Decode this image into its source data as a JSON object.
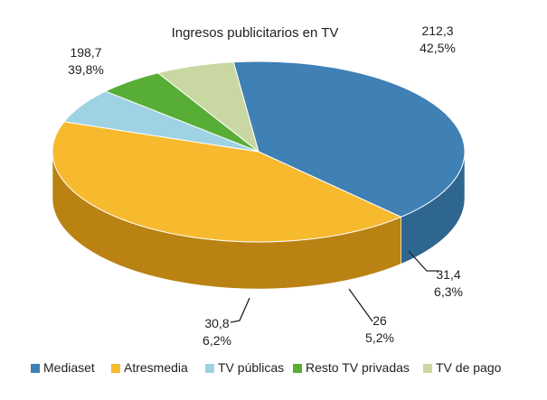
{
  "chart_data": {
    "type": "pie",
    "title": "Ingresos publicitarios en TV",
    "slices": [
      {
        "name": "Mediaset",
        "value": 198.7,
        "value_label": "198,7",
        "percent_label": "39,8%",
        "color": "#3f80b5",
        "side": "#2e6690"
      },
      {
        "name": "Atresmedia",
        "value": 212.3,
        "value_label": "212,3",
        "percent_label": "42,5%",
        "color": "#f7b92e",
        "side": "#b98212"
      },
      {
        "name": "TV públicas",
        "value": 31.4,
        "value_label": "31,4",
        "percent_label": "6,3%",
        "color": "#9fd2e3",
        "side": "#4b5f70"
      },
      {
        "name": "Resto TV privadas",
        "value": 26,
        "value_label": "26",
        "percent_label": "5,2%",
        "color": "#58ad36",
        "side": "#3c7f26"
      },
      {
        "name": "TV de pago",
        "value": 30.8,
        "value_label": "30,8",
        "percent_label": "6,2%",
        "color": "#c9d8a2",
        "side": "#8f9a74"
      }
    ],
    "legend_position": "bottom",
    "three_d": true
  }
}
